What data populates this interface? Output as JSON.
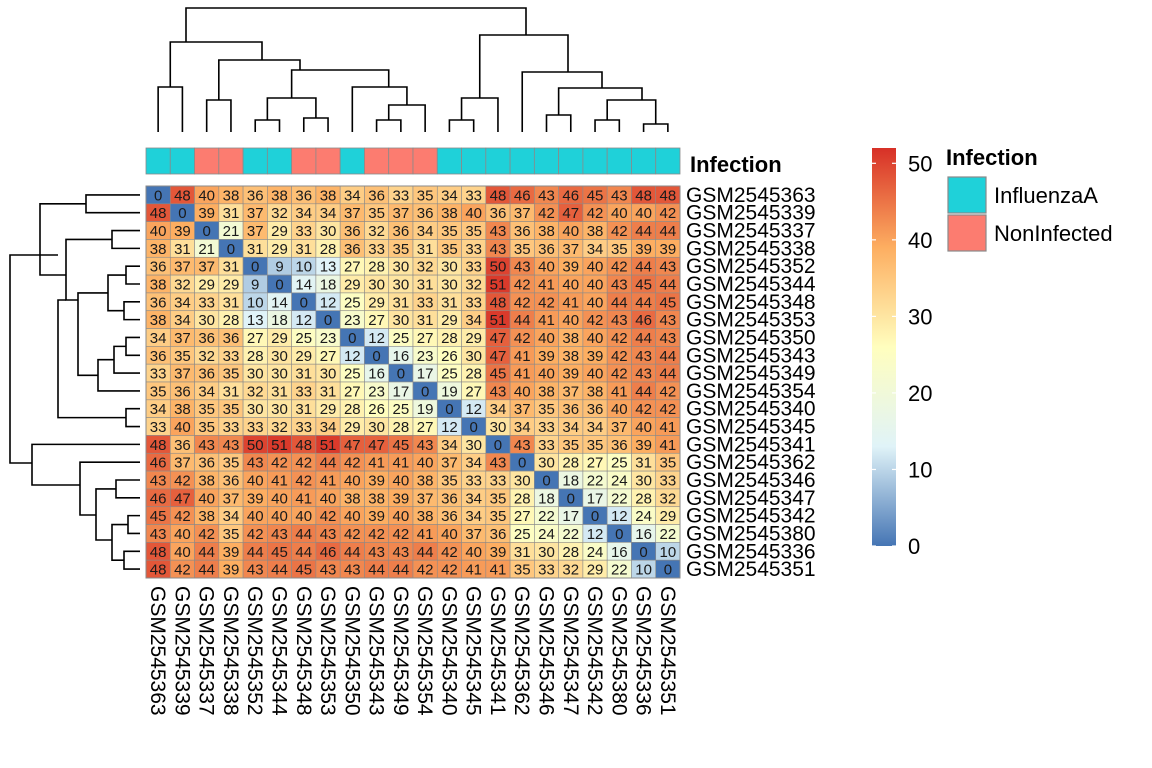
{
  "chart_data": {
    "type": "heatmap",
    "title": "",
    "samples": [
      "GSM2545363",
      "GSM2545339",
      "GSM2545337",
      "GSM2545338",
      "GSM2545352",
      "GSM2545344",
      "GSM2545348",
      "GSM2545353",
      "GSM2545350",
      "GSM2545343",
      "GSM2545349",
      "GSM2545354",
      "GSM2545340",
      "GSM2545345",
      "GSM2545341",
      "GSM2545362",
      "GSM2545346",
      "GSM2545347",
      "GSM2545342",
      "GSM2545380",
      "GSM2545336",
      "GSM2545351"
    ],
    "annotation": {
      "title": "Infection",
      "levels": [
        "InfluenzaA",
        "NonInfected"
      ],
      "colors": {
        "InfluenzaA": "#1fd1d9",
        "NonInfected": "#fc7c70"
      },
      "column_values": [
        "InfluenzaA",
        "InfluenzaA",
        "NonInfected",
        "NonInfected",
        "InfluenzaA",
        "InfluenzaA",
        "NonInfected",
        "NonInfected",
        "InfluenzaA",
        "NonInfected",
        "NonInfected",
        "NonInfected",
        "InfluenzaA",
        "InfluenzaA",
        "InfluenzaA",
        "InfluenzaA",
        "InfluenzaA",
        "InfluenzaA",
        "InfluenzaA",
        "InfluenzaA",
        "InfluenzaA",
        "InfluenzaA"
      ]
    },
    "colorbar": {
      "range": [
        0,
        52
      ],
      "ticks": [
        "50",
        "40",
        "30",
        "20",
        "10",
        "0"
      ],
      "tick_values": [
        50,
        40,
        30,
        20,
        10,
        0
      ],
      "colors": [
        "#4575b4",
        "#e0f3f8",
        "#fffebe",
        "#fdae61",
        "#d73027"
      ]
    },
    "values": [
      [
        0,
        48,
        40,
        38,
        36,
        38,
        36,
        38,
        34,
        36,
        33,
        35,
        34,
        33,
        48,
        46,
        43,
        46,
        45,
        43,
        48,
        48
      ],
      [
        48,
        0,
        39,
        31,
        37,
        32,
        34,
        34,
        37,
        35,
        37,
        36,
        38,
        40,
        36,
        37,
        42,
        47,
        42,
        40,
        40,
        42
      ],
      [
        40,
        39,
        0,
        21,
        37,
        29,
        33,
        30,
        36,
        32,
        36,
        34,
        35,
        35,
        43,
        36,
        38,
        40,
        38,
        42,
        44,
        44
      ],
      [
        38,
        31,
        21,
        0,
        31,
        29,
        31,
        28,
        36,
        33,
        35,
        31,
        35,
        33,
        43,
        35,
        36,
        37,
        34,
        35,
        39,
        39
      ],
      [
        36,
        37,
        37,
        31,
        0,
        9,
        10,
        13,
        27,
        28,
        30,
        32,
        30,
        33,
        50,
        43,
        40,
        39,
        40,
        42,
        44,
        43
      ],
      [
        38,
        32,
        29,
        29,
        9,
        0,
        14,
        18,
        29,
        30,
        30,
        31,
        30,
        32,
        51,
        42,
        41,
        40,
        40,
        43,
        45,
        44
      ],
      [
        36,
        34,
        33,
        31,
        10,
        14,
        0,
        12,
        25,
        29,
        31,
        33,
        31,
        33,
        48,
        42,
        42,
        41,
        40,
        44,
        44,
        45
      ],
      [
        38,
        34,
        30,
        28,
        13,
        18,
        12,
        0,
        23,
        27,
        30,
        31,
        29,
        34,
        51,
        44,
        41,
        40,
        42,
        43,
        46,
        43
      ],
      [
        34,
        37,
        36,
        36,
        27,
        29,
        25,
        23,
        0,
        12,
        25,
        27,
        28,
        29,
        47,
        42,
        40,
        38,
        40,
        42,
        44,
        43
      ],
      [
        36,
        35,
        32,
        33,
        28,
        30,
        29,
        27,
        12,
        0,
        16,
        23,
        26,
        30,
        47,
        41,
        39,
        38,
        39,
        42,
        43,
        44
      ],
      [
        33,
        37,
        36,
        35,
        30,
        30,
        31,
        30,
        25,
        16,
        0,
        17,
        25,
        28,
        45,
        41,
        40,
        39,
        40,
        42,
        43,
        44
      ],
      [
        35,
        36,
        34,
        31,
        32,
        31,
        33,
        31,
        27,
        23,
        17,
        0,
        19,
        27,
        43,
        40,
        38,
        37,
        38,
        41,
        44,
        42
      ],
      [
        34,
        38,
        35,
        35,
        30,
        30,
        31,
        29,
        28,
        26,
        25,
        19,
        0,
        12,
        34,
        37,
        35,
        36,
        36,
        40,
        42,
        42
      ],
      [
        33,
        40,
        35,
        33,
        33,
        32,
        33,
        34,
        29,
        30,
        28,
        27,
        12,
        0,
        30,
        34,
        33,
        34,
        34,
        37,
        40,
        41
      ],
      [
        48,
        36,
        43,
        43,
        50,
        51,
        48,
        51,
        47,
        47,
        45,
        43,
        34,
        30,
        0,
        43,
        33,
        35,
        35,
        36,
        39,
        41
      ],
      [
        46,
        37,
        36,
        35,
        43,
        42,
        42,
        44,
        42,
        41,
        41,
        40,
        37,
        34,
        43,
        0,
        30,
        28,
        27,
        25,
        31,
        35
      ],
      [
        43,
        42,
        38,
        36,
        40,
        41,
        42,
        41,
        40,
        39,
        40,
        38,
        35,
        33,
        33,
        30,
        0,
        18,
        22,
        24,
        30,
        33
      ],
      [
        46,
        47,
        40,
        37,
        39,
        40,
        41,
        40,
        38,
        38,
        39,
        37,
        36,
        34,
        35,
        28,
        18,
        0,
        17,
        22,
        28,
        32
      ],
      [
        45,
        42,
        38,
        34,
        40,
        40,
        40,
        42,
        40,
        39,
        40,
        38,
        36,
        34,
        35,
        27,
        22,
        17,
        0,
        12,
        24,
        29
      ],
      [
        43,
        40,
        42,
        35,
        42,
        43,
        44,
        43,
        42,
        42,
        42,
        41,
        40,
        37,
        36,
        25,
        24,
        22,
        12,
        0,
        16,
        22
      ],
      [
        48,
        40,
        44,
        39,
        44,
        45,
        44,
        46,
        44,
        43,
        43,
        44,
        42,
        40,
        39,
        31,
        30,
        28,
        24,
        16,
        0,
        10
      ],
      [
        48,
        42,
        44,
        39,
        43,
        44,
        45,
        43,
        43,
        44,
        44,
        42,
        42,
        41,
        41,
        35,
        33,
        32,
        29,
        22,
        10,
        0
      ]
    ]
  }
}
